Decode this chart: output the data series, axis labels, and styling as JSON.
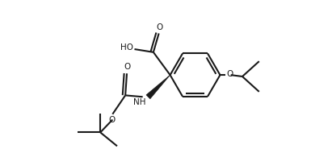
{
  "bg_color": "#ffffff",
  "line_color": "#1a1a1a",
  "line_width": 1.5,
  "font_size": 7.5,
  "figsize": [
    3.85,
    1.9
  ],
  "dpi": 100,
  "xlim": [
    0,
    10
  ],
  "ylim": [
    0,
    5
  ]
}
